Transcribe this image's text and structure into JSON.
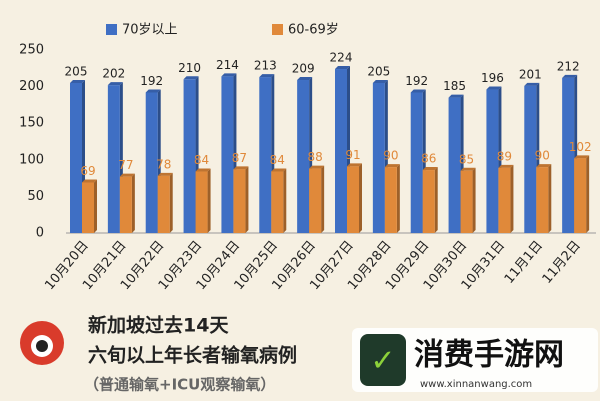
{
  "chart_data": {
    "type": "bar",
    "categories": [
      "10月20日",
      "10月21日",
      "10月22日",
      "10月23日",
      "10月24日",
      "10月25日",
      "10月26日",
      "10月27日",
      "10月28日",
      "10月29日",
      "10月30日",
      "10月31日",
      "11月1日",
      "11月2日"
    ],
    "series": [
      {
        "name": "70岁以上",
        "color": "#3f6fc4",
        "values": [
          205,
          202,
          192,
          210,
          214,
          213,
          209,
          224,
          205,
          192,
          185,
          196,
          201,
          212
        ]
      },
      {
        "name": "60-69岁",
        "color": "#e0893a",
        "values": [
          69,
          77,
          78,
          84,
          87,
          84,
          88,
          91,
          90,
          86,
          85,
          89,
          90,
          102
        ]
      }
    ],
    "ylim": [
      0,
      250
    ],
    "yticks": [
      0,
      50,
      100,
      150,
      200,
      250
    ],
    "grid": false,
    "caption": [
      "新加坡过去14天",
      "六旬以上年长者输氧病例",
      "（普通输氧+ICU观察输氧）"
    ],
    "watermark": {
      "title": "消费手游网",
      "url": "www.xinnanwang.com"
    }
  }
}
